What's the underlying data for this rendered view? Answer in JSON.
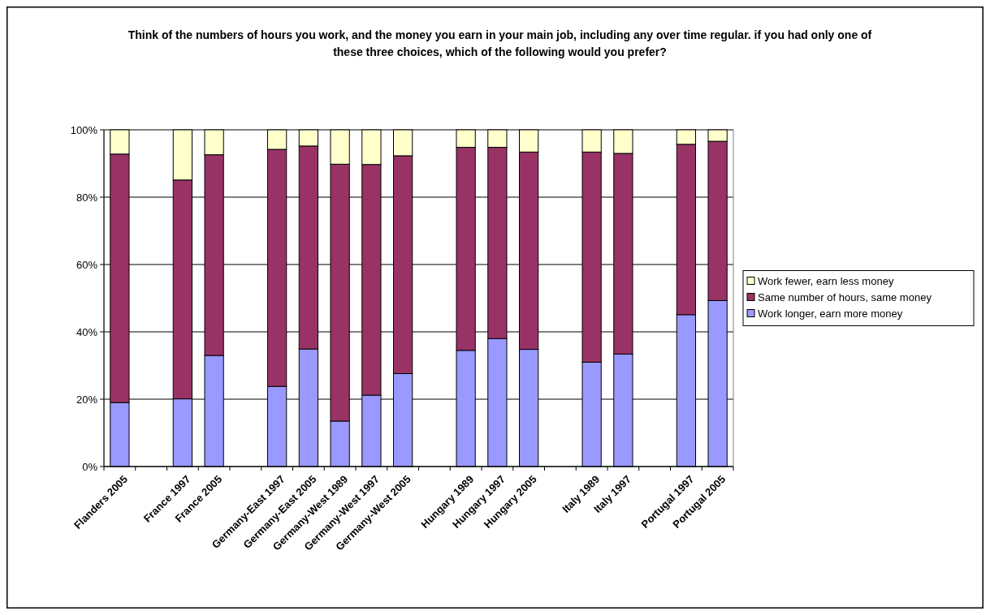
{
  "chart_data": {
    "type": "bar",
    "stacked": true,
    "title": "Think of the numbers of hours you work, and the money you earn in your main job, including any over time regular. if you had only one of these three choices, which of the following would you prefer?",
    "categories": [
      "Flanders 2005",
      null,
      "France 1997",
      "France 2005",
      null,
      "Germany-East 1997",
      "Germany-East 2005",
      "Germany-West 1989",
      "Germany-West 1997",
      "Germany-West 2005",
      null,
      "Hungary 1989",
      "Hungary 1997",
      "Hungary 2005",
      null,
      "Italy 1989",
      "Italy 1997",
      null,
      "Portugal 1997",
      "Portugal 2005"
    ],
    "series": [
      {
        "name": "Work longer, earn more money",
        "color": "#9999ff",
        "values": [
          19.0,
          null,
          20.1,
          33.0,
          null,
          23.8,
          34.9,
          13.5,
          21.2,
          27.6,
          null,
          34.5,
          38.0,
          34.8,
          null,
          31.0,
          33.4,
          null,
          45.1,
          49.3
        ]
      },
      {
        "name": "Same number of hours, same money",
        "color": "#993366",
        "values": [
          73.8,
          null,
          65.0,
          59.6,
          null,
          70.4,
          60.3,
          76.3,
          68.5,
          64.7,
          null,
          60.3,
          56.8,
          58.6,
          null,
          62.4,
          59.6,
          null,
          50.6,
          47.3
        ]
      },
      {
        "name": "Work fewer, earn less money",
        "color": "#ffffcc",
        "values": [
          7.2,
          null,
          14.9,
          7.4,
          null,
          5.8,
          4.8,
          10.2,
          10.3,
          7.7,
          null,
          5.2,
          5.2,
          6.6,
          null,
          6.6,
          7.0,
          null,
          4.3,
          3.4
        ]
      }
    ],
    "ylim": [
      0,
      100
    ],
    "yticks": [
      {
        "value": 0,
        "label": "0%"
      },
      {
        "value": 20,
        "label": "20%"
      },
      {
        "value": 40,
        "label": "40%"
      },
      {
        "value": 60,
        "label": "60%"
      },
      {
        "value": 80,
        "label": "80%"
      },
      {
        "value": 100,
        "label": "100%"
      }
    ],
    "grid": "y",
    "legend": "right"
  }
}
